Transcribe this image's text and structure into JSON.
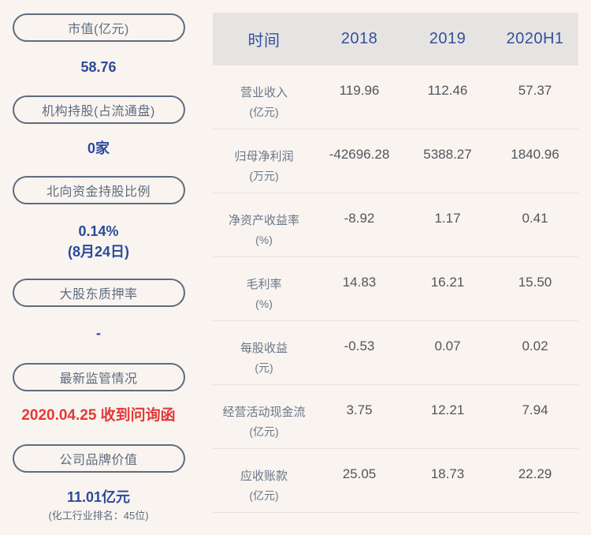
{
  "colors": {
    "page_bg": "#f9f4f0",
    "accent_blue": "#2b4a9b",
    "header_blue": "#31509d",
    "alert_red": "#e23936",
    "pill_slate": "#5d6c7f",
    "table_label": "#697687",
    "table_value": "#51565c",
    "header_bg": "#e6e4e2",
    "divider": "#e5e2df"
  },
  "sidebar": {
    "items": [
      {
        "label": "市值(亿元)",
        "value": "58.76"
      },
      {
        "label": "机构持股(占流通盘)",
        "value": "0家"
      },
      {
        "label": "北向资金持股比例",
        "value": "0.14%",
        "value2": "(8月24日)"
      },
      {
        "label": "大股东质押率",
        "value": "-"
      },
      {
        "label": "最新监管情况",
        "value": "2020.04.25 收到问询函"
      },
      {
        "label": "公司品牌价值",
        "value": "11.01亿元",
        "note": "(化工行业排名：45位)"
      }
    ]
  },
  "table": {
    "header": {
      "time_label": "时间",
      "columns": [
        "2018",
        "2019",
        "2020H1"
      ]
    },
    "rows": [
      {
        "name": "营业收入",
        "unit": "(亿元)",
        "values": [
          "119.96",
          "112.46",
          "57.37"
        ]
      },
      {
        "name": "归母净利润",
        "unit": "(万元)",
        "values": [
          "-42696.28",
          "5388.27",
          "1840.96"
        ]
      },
      {
        "name": "净资产收益率",
        "unit": "(%)",
        "values": [
          "-8.92",
          "1.17",
          "0.41"
        ]
      },
      {
        "name": "毛利率",
        "unit": "(%)",
        "values": [
          "14.83",
          "16.21",
          "15.50"
        ]
      },
      {
        "name": "每股收益",
        "unit": "(元)",
        "values": [
          "-0.53",
          "0.07",
          "0.02"
        ]
      },
      {
        "name": "经营活动现金流",
        "unit": "(亿元)",
        "values": [
          "3.75",
          "12.21",
          "7.94"
        ]
      },
      {
        "name": "应收账款",
        "unit": "(亿元)",
        "values": [
          "25.05",
          "18.73",
          "22.29"
        ]
      }
    ]
  }
}
